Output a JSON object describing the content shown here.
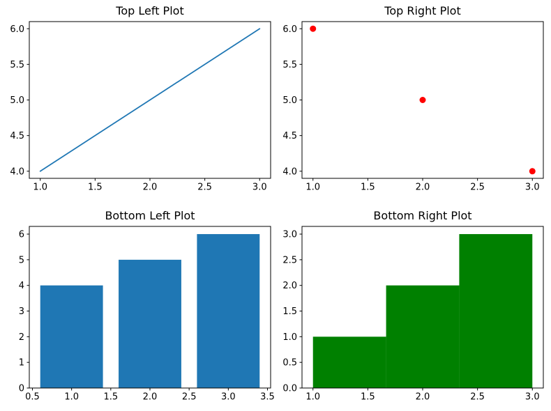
{
  "figure": {
    "background": "#ffffff",
    "spine_color": "#000000",
    "tick_color": "#000000",
    "text_color": "#000000"
  },
  "chart_data": [
    {
      "position": "top-left",
      "type": "line",
      "title": "Top Left Plot",
      "x": [
        1,
        2,
        3
      ],
      "y": [
        4,
        5,
        6
      ],
      "color": "#1f77b4",
      "line_width": 1.8,
      "xlim": [
        0.9,
        3.1
      ],
      "ylim": [
        3.9,
        6.1
      ],
      "xticks": [
        1.0,
        1.5,
        2.0,
        2.5,
        3.0
      ],
      "xtick_labels": [
        "1.0",
        "1.5",
        "2.0",
        "2.5",
        "3.0"
      ],
      "yticks": [
        4.0,
        4.5,
        5.0,
        5.5,
        6.0
      ],
      "ytick_labels": [
        "4.0",
        "4.5",
        "5.0",
        "5.5",
        "6.0"
      ],
      "grid": false,
      "legend": null,
      "xlabel": "",
      "ylabel": ""
    },
    {
      "position": "top-right",
      "type": "scatter",
      "title": "Top Right Plot",
      "x": [
        1,
        2,
        3
      ],
      "y": [
        6,
        5,
        4
      ],
      "color": "#ff0000",
      "marker_radius": 4.5,
      "xlim": [
        0.9,
        3.1
      ],
      "ylim": [
        3.9,
        6.1
      ],
      "xticks": [
        1.0,
        1.5,
        2.0,
        2.5,
        3.0
      ],
      "xtick_labels": [
        "1.0",
        "1.5",
        "2.0",
        "2.5",
        "3.0"
      ],
      "yticks": [
        4.0,
        4.5,
        5.0,
        5.5,
        6.0
      ],
      "ytick_labels": [
        "4.0",
        "4.5",
        "5.0",
        "5.5",
        "6.0"
      ],
      "grid": false,
      "legend": null,
      "xlabel": "",
      "ylabel": ""
    },
    {
      "position": "bottom-left",
      "type": "bar",
      "title": "Bottom Left Plot",
      "categories": [
        1,
        2,
        3
      ],
      "values": [
        4,
        5,
        6
      ],
      "bar_width": 0.8,
      "color": "#1f77b4",
      "xlim": [
        0.46,
        3.54
      ],
      "ylim": [
        0,
        6.3
      ],
      "xticks": [
        0.5,
        1.0,
        1.5,
        2.0,
        2.5,
        3.0,
        3.5
      ],
      "xtick_labels": [
        "0.5",
        "1.0",
        "1.5",
        "2.0",
        "2.5",
        "3.0",
        "3.5"
      ],
      "yticks": [
        0,
        1,
        2,
        3,
        4,
        5,
        6
      ],
      "ytick_labels": [
        "0",
        "1",
        "2",
        "3",
        "4",
        "5",
        "6"
      ],
      "grid": false,
      "legend": null,
      "xlabel": "",
      "ylabel": ""
    },
    {
      "position": "bottom-right",
      "type": "histogram",
      "title": "Bottom Right Plot",
      "bin_edges": [
        1.0,
        1.6667,
        2.3333,
        3.0
      ],
      "counts": [
        1,
        2,
        3
      ],
      "color": "#008000",
      "xlim": [
        0.9,
        3.1
      ],
      "ylim": [
        0,
        3.15
      ],
      "xticks": [
        1.0,
        1.5,
        2.0,
        2.5,
        3.0
      ],
      "xtick_labels": [
        "1.0",
        "1.5",
        "2.0",
        "2.5",
        "3.0"
      ],
      "yticks": [
        0.0,
        0.5,
        1.0,
        1.5,
        2.0,
        2.5,
        3.0
      ],
      "ytick_labels": [
        "0.0",
        "0.5",
        "1.0",
        "1.5",
        "2.0",
        "2.5",
        "3.0"
      ],
      "grid": false,
      "legend": null,
      "xlabel": "",
      "ylabel": ""
    }
  ]
}
